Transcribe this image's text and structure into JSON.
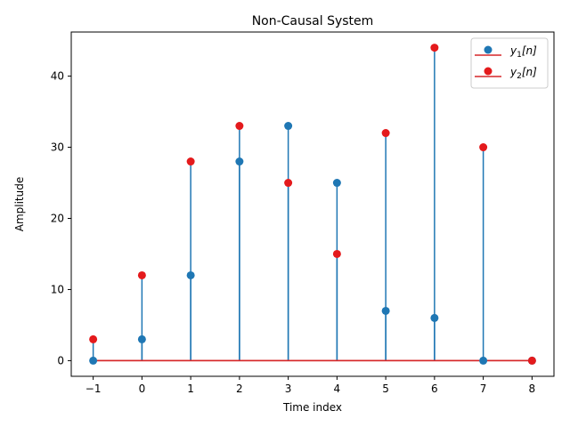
{
  "chart_data": {
    "type": "stem",
    "title": "Non-Causal System",
    "xlabel": "Time index",
    "ylabel": "Amplitude",
    "xlim": [
      -1.45,
      8.45
    ],
    "ylim": [
      -2.2,
      46.2
    ],
    "xticks": [
      -1,
      0,
      1,
      2,
      3,
      4,
      5,
      6,
      7,
      8
    ],
    "xtick_labels": [
      "−1",
      "0",
      "1",
      "2",
      "3",
      "4",
      "5",
      "6",
      "7",
      "8"
    ],
    "yticks": [
      0,
      10,
      20,
      30,
      40
    ],
    "grid": false,
    "legend_position": "top-right",
    "series": [
      {
        "name": "y₁[n]",
        "legend_base": "y",
        "legend_sub": "1",
        "legend_suffix": "[n]",
        "color": "#1f77b4",
        "x": [
          -1,
          0,
          1,
          2,
          3,
          4,
          5,
          6,
          7,
          8
        ],
        "values": [
          0,
          3,
          12,
          28,
          33,
          25,
          7,
          6,
          0,
          0
        ]
      },
      {
        "name": "y₂[n]",
        "legend_base": "y",
        "legend_sub": "2",
        "legend_suffix": "[n]",
        "color": "#e41a1c",
        "x": [
          -1,
          0,
          1,
          2,
          3,
          4,
          5,
          6,
          7,
          8
        ],
        "values": [
          3,
          12,
          28,
          33,
          25,
          15,
          32,
          44,
          30,
          0
        ]
      }
    ],
    "stem_color": "#1f77b4",
    "baseline_color": "#d62728"
  }
}
